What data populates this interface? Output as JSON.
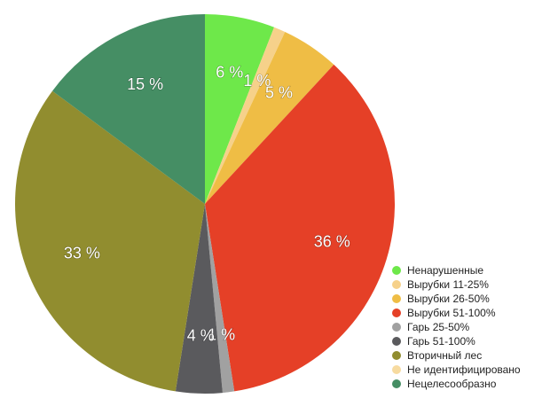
{
  "chart_data": {
    "type": "pie",
    "categories": [
      "Ненарушенные",
      "Вырубки 11-25%",
      "Вырубки 26-50%",
      "Вырубки 51-100%",
      "Гарь 25-50%",
      "Гарь 51-100%",
      "Вторичный лес",
      "Не идентифицировано",
      "Нецелесообразно"
    ],
    "values": [
      6,
      1,
      5,
      36,
      1,
      4,
      33,
      0,
      15
    ],
    "data_labels": [
      "6 %",
      "1 %",
      "5 %",
      "36 %",
      "1 %",
      "4 %",
      "33 %",
      "",
      "15 %"
    ],
    "colors": [
      "#6ee84a",
      "#f6d18a",
      "#efbd45",
      "#e54027",
      "#a1a1a1",
      "#5a5a5d",
      "#918d2f",
      "#f7dba0",
      "#458e64"
    ],
    "legend_position": "bottom-right",
    "start_angle_deg": 0,
    "direction": "clockwise"
  }
}
